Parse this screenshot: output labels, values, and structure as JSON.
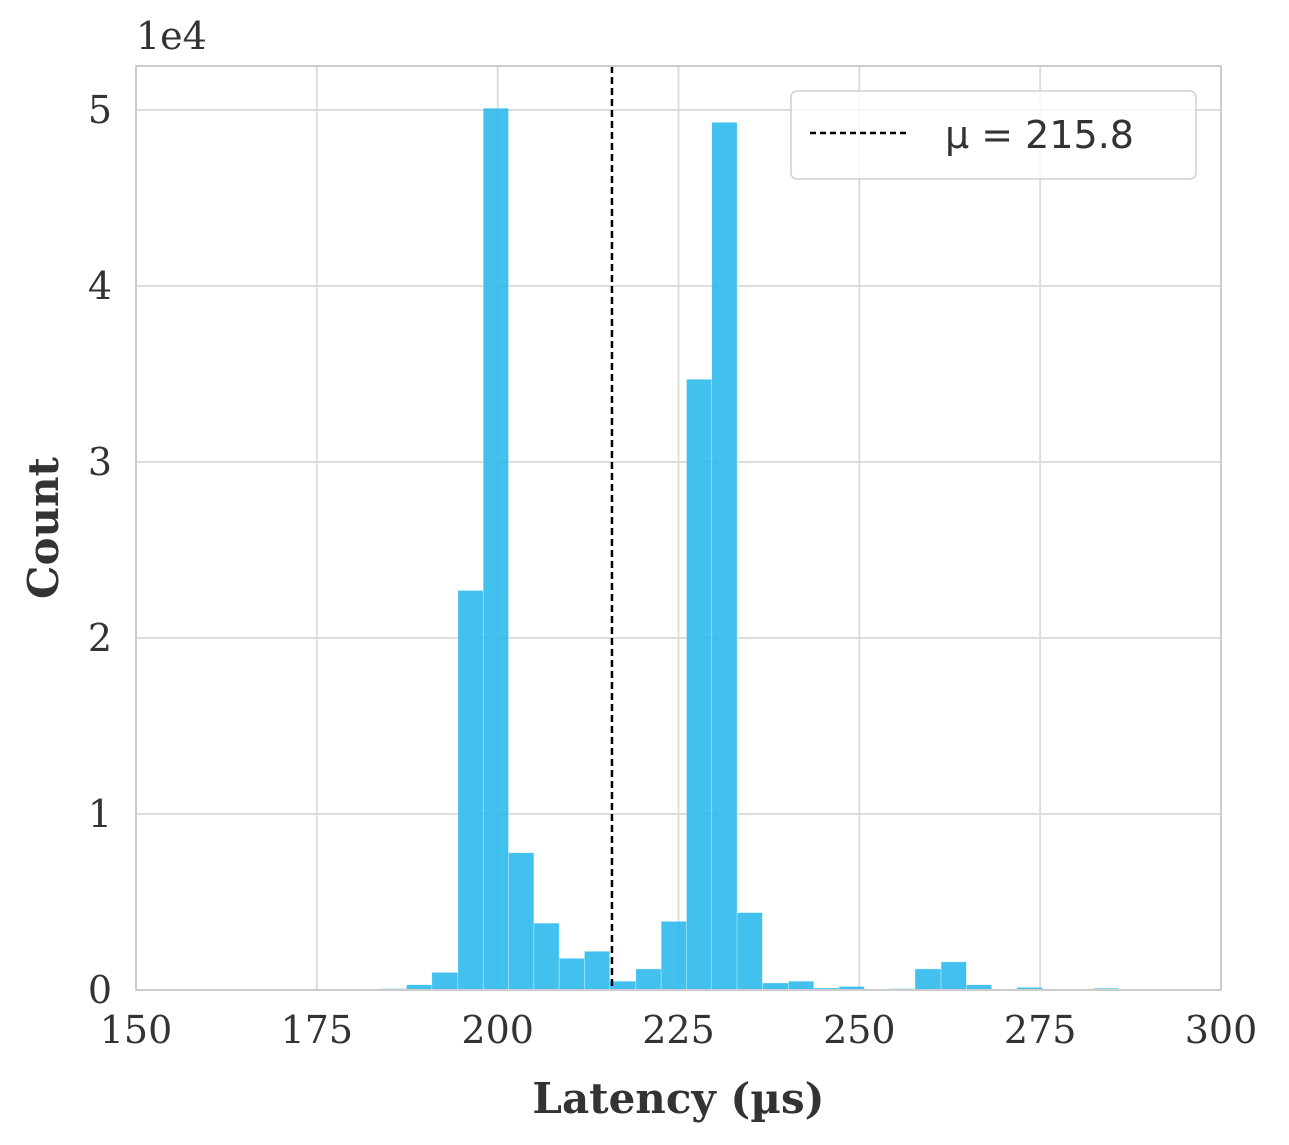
{
  "chart_data": {
    "type": "bar",
    "subtype": "histogram",
    "xlabel": "Latency (µs)",
    "ylabel": "Count",
    "y_offset_label": "1e4",
    "xlim": [
      150,
      300
    ],
    "ylim": [
      0,
      52500
    ],
    "x_ticks": [
      150,
      175,
      200,
      225,
      250,
      275,
      300
    ],
    "y_ticks": [
      0,
      10000,
      20000,
      30000,
      40000,
      50000
    ],
    "y_tick_labels": [
      "0",
      "1",
      "2",
      "3",
      "4",
      "5"
    ],
    "grid": true,
    "bar_color": "#29b8ec",
    "mean_line": {
      "value": 215.8,
      "color": "#000000",
      "style": "dashed"
    },
    "legend": {
      "position": "top-right",
      "label": "μ = 215.8"
    },
    "bins": [
      {
        "x0": 183.9,
        "x1": 187.4,
        "count": 80
      },
      {
        "x0": 187.4,
        "x1": 190.9,
        "count": 300
      },
      {
        "x0": 190.9,
        "x1": 194.5,
        "count": 1000
      },
      {
        "x0": 194.5,
        "x1": 198.0,
        "count": 22700
      },
      {
        "x0": 198.0,
        "x1": 201.5,
        "count": 50100
      },
      {
        "x0": 201.5,
        "x1": 205.0,
        "count": 7800
      },
      {
        "x0": 205.0,
        "x1": 208.5,
        "count": 3800
      },
      {
        "x0": 208.5,
        "x1": 212.0,
        "count": 1800
      },
      {
        "x0": 212.0,
        "x1": 215.5,
        "count": 2200
      },
      {
        "x0": 215.5,
        "x1": 219.1,
        "count": 500
      },
      {
        "x0": 219.1,
        "x1": 222.6,
        "count": 1200
      },
      {
        "x0": 222.6,
        "x1": 226.1,
        "count": 3900
      },
      {
        "x0": 226.1,
        "x1": 229.6,
        "count": 34700
      },
      {
        "x0": 229.6,
        "x1": 233.1,
        "count": 49300
      },
      {
        "x0": 233.1,
        "x1": 236.6,
        "count": 4400
      },
      {
        "x0": 236.6,
        "x1": 240.2,
        "count": 400
      },
      {
        "x0": 240.2,
        "x1": 243.7,
        "count": 500
      },
      {
        "x0": 243.7,
        "x1": 247.2,
        "count": 120
      },
      {
        "x0": 247.2,
        "x1": 250.7,
        "count": 200
      },
      {
        "x0": 250.7,
        "x1": 254.2,
        "count": 60
      },
      {
        "x0": 254.2,
        "x1": 257.7,
        "count": 80
      },
      {
        "x0": 257.7,
        "x1": 261.3,
        "count": 1200
      },
      {
        "x0": 261.3,
        "x1": 264.8,
        "count": 1600
      },
      {
        "x0": 264.8,
        "x1": 268.3,
        "count": 300
      },
      {
        "x0": 268.3,
        "x1": 271.8,
        "count": 60
      },
      {
        "x0": 271.8,
        "x1": 275.3,
        "count": 150
      },
      {
        "x0": 275.3,
        "x1": 278.8,
        "count": 40
      },
      {
        "x0": 278.8,
        "x1": 282.4,
        "count": 40
      },
      {
        "x0": 282.4,
        "x1": 285.9,
        "count": 100
      },
      {
        "x0": 285.9,
        "x1": 289.4,
        "count": 30
      },
      {
        "x0": 289.4,
        "x1": 292.9,
        "count": 20
      }
    ]
  }
}
